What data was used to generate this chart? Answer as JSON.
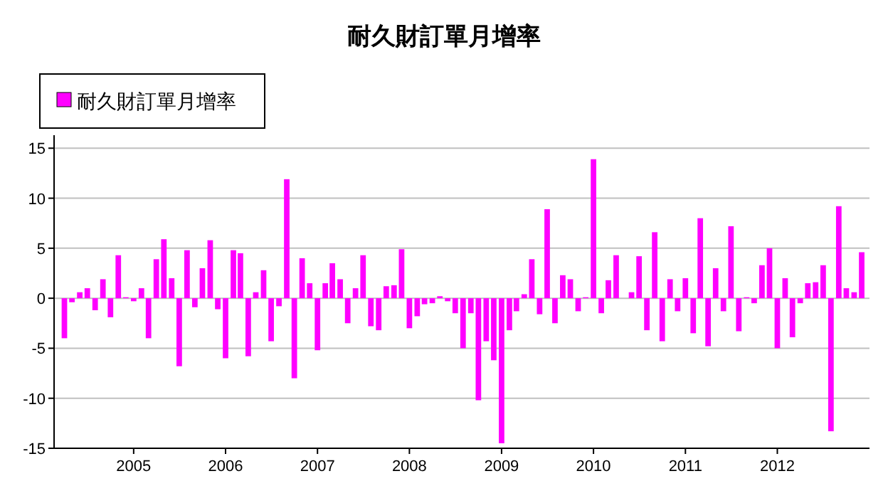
{
  "chart_data": {
    "type": "bar",
    "title": "耐久財訂單月增率",
    "x": [
      "2004-04",
      "2004-05",
      "2004-06",
      "2004-07",
      "2004-08",
      "2004-09",
      "2004-10",
      "2004-11",
      "2004-12",
      "2005-01",
      "2005-02",
      "2005-03",
      "2005-04",
      "2005-05",
      "2005-06",
      "2005-07",
      "2005-08",
      "2005-09",
      "2005-10",
      "2005-11",
      "2005-12",
      "2006-01",
      "2006-02",
      "2006-03",
      "2006-04",
      "2006-05",
      "2006-06",
      "2006-07",
      "2006-08",
      "2006-09",
      "2006-10",
      "2006-11",
      "2006-12",
      "2007-01",
      "2007-02",
      "2007-03",
      "2007-04",
      "2007-05",
      "2007-06",
      "2007-07",
      "2007-08",
      "2007-09",
      "2007-10",
      "2007-11",
      "2007-12",
      "2008-01",
      "2008-02",
      "2008-03",
      "2008-04",
      "2008-05",
      "2008-06",
      "2008-07",
      "2008-08",
      "2008-09",
      "2008-10",
      "2008-11",
      "2008-12",
      "2009-01",
      "2009-02",
      "2009-03",
      "2009-04",
      "2009-05",
      "2009-06",
      "2009-07",
      "2009-08",
      "2009-09",
      "2009-10",
      "2009-11",
      "2009-12",
      "2010-01",
      "2010-02",
      "2010-03",
      "2010-04",
      "2010-05",
      "2010-06",
      "2010-07",
      "2010-08",
      "2010-09",
      "2010-10",
      "2010-11",
      "2010-12",
      "2011-01",
      "2011-02",
      "2011-03",
      "2011-04",
      "2011-05",
      "2011-06",
      "2011-07",
      "2011-08",
      "2011-09",
      "2011-10",
      "2011-11",
      "2011-12",
      "2012-01",
      "2012-02",
      "2012-03",
      "2012-04",
      "2012-05",
      "2012-06",
      "2012-07",
      "2012-08",
      "2012-09",
      "2012-10",
      "2012-11",
      "2012-12"
    ],
    "series": [
      {
        "name": "耐久財訂單月增率",
        "color": "#ff00ff",
        "values": [
          -4.0,
          -0.4,
          0.6,
          1.0,
          -1.2,
          1.9,
          -1.9,
          4.3,
          0.1,
          -0.3,
          1.0,
          -4.0,
          3.9,
          5.9,
          2.0,
          -6.8,
          4.8,
          -0.9,
          3.0,
          5.8,
          -1.1,
          -6.0,
          4.8,
          4.5,
          -5.8,
          0.6,
          2.8,
          -4.3,
          -0.8,
          11.9,
          -8.0,
          4.0,
          1.5,
          -5.2,
          1.5,
          3.5,
          1.9,
          -2.5,
          1.0,
          4.3,
          -2.8,
          -3.2,
          1.2,
          1.3,
          4.9,
          -3.0,
          -1.8,
          -0.6,
          -0.5,
          0.2,
          -0.3,
          -1.5,
          -5.0,
          -1.5,
          -10.2,
          -4.3,
          -6.2,
          -14.5,
          -3.2,
          -1.3,
          0.4,
          3.9,
          -1.6,
          8.9,
          -2.5,
          2.3,
          1.9,
          -1.3,
          0.1,
          13.9,
          -1.5,
          1.8,
          4.3,
          0,
          0.6,
          4.2,
          -3.2,
          6.6,
          -4.3,
          1.9,
          -1.3,
          2.0,
          -3.5,
          8.0,
          -4.8,
          3.0,
          -1.3,
          7.2,
          -3.3,
          0.1,
          -0.5,
          3.3,
          5.0,
          -5.0,
          2.0,
          -3.9,
          -0.5,
          1.5,
          1.6,
          3.3,
          -13.3,
          9.2,
          1.0,
          0.6,
          4.6
        ]
      }
    ],
    "xlim": [
      "2004-02-20",
      "2013-01-01"
    ],
    "xticks": [
      {
        "value": "2005-01-01",
        "label": "2005"
      },
      {
        "value": "2006-01-01",
        "label": "2006"
      },
      {
        "value": "2007-01-01",
        "label": "2007"
      },
      {
        "value": "2008-01-01",
        "label": "2008"
      },
      {
        "value": "2009-01-01",
        "label": "2009"
      },
      {
        "value": "2010-01-01",
        "label": "2010"
      },
      {
        "value": "2011-01-01",
        "label": "2011"
      },
      {
        "value": "2012-01-01",
        "label": "2012"
      }
    ],
    "ylim": [
      -15,
      16.3
    ],
    "yticks": [
      -15,
      -10,
      -5,
      0,
      5,
      10,
      15
    ],
    "grid": "y",
    "legend": "top left"
  }
}
